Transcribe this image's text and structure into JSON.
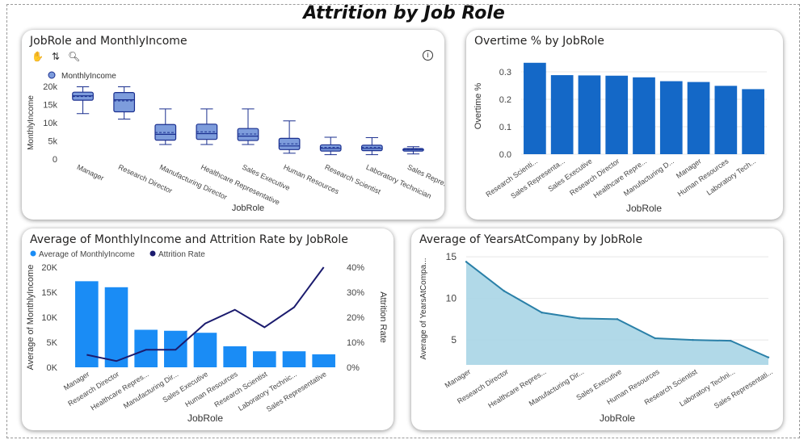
{
  "page_title": "Attrition by Job Role",
  "toolbar": {
    "icon1": "hand-icon",
    "icon2": "sort-icon",
    "icon3": "zoom-icon",
    "info": "info-icon"
  },
  "colors": {
    "box_fill": "#7d9cdc",
    "box_stroke": "#1a2f8f",
    "bar_blue": "#1468c7",
    "bar_light": "#1a8cf5",
    "line_navy": "#1b1b6e",
    "area_fill": "#a9d5e6",
    "area_line": "#2a80a8"
  },
  "chart_data": [
    {
      "type": "box",
      "title": "JobRole and MonthlyIncome",
      "legend": "MonthlyIncome",
      "xlabel": "JobRole",
      "ylabel": "MonthlyIncome",
      "ylim": [
        0,
        20000
      ],
      "yticks": [
        "0",
        "5k",
        "10k",
        "15k",
        "20k"
      ],
      "ytick_values": [
        0,
        5000,
        10000,
        15000,
        20000
      ],
      "categories": [
        "Manager",
        "Research Director",
        "Manufacturing Director",
        "Healthcare Representative",
        "Sales Executive",
        "Human Resources",
        "Research Scientist",
        "Laboratory Technician",
        "Sales Representative"
      ],
      "boxes": [
        {
          "min": 12500,
          "q1": 16200,
          "median": 17400,
          "mean": 17200,
          "q3": 18400,
          "max": 19900
        },
        {
          "min": 11000,
          "q1": 13000,
          "median": 16300,
          "mean": 16000,
          "q3": 18300,
          "max": 19900
        },
        {
          "min": 4000,
          "q1": 5200,
          "median": 6800,
          "mean": 7300,
          "q3": 9500,
          "max": 13800
        },
        {
          "min": 4000,
          "q1": 5400,
          "median": 7000,
          "mean": 7500,
          "q3": 9600,
          "max": 13800
        },
        {
          "min": 4000,
          "q1": 5100,
          "median": 6300,
          "mean": 6900,
          "q3": 8400,
          "max": 13800
        },
        {
          "min": 1600,
          "q1": 2600,
          "median": 3600,
          "mean": 4200,
          "q3": 5700,
          "max": 10500
        },
        {
          "min": 1200,
          "q1": 2200,
          "median": 2900,
          "mean": 3200,
          "q3": 3900,
          "max": 6000
        },
        {
          "min": 1200,
          "q1": 2300,
          "median": 2900,
          "mean": 3200,
          "q3": 3800,
          "max": 5900
        },
        {
          "min": 1400,
          "q1": 2200,
          "median": 2600,
          "mean": 2600,
          "q3": 2900,
          "max": 3400
        }
      ]
    },
    {
      "type": "bar",
      "title": "Overtime % by JobRole",
      "xlabel": "JobRole",
      "ylabel": "Overtime %",
      "ylim": [
        0,
        0.35
      ],
      "yticks": [
        "0.0",
        "0.1",
        "0.2",
        "0.3"
      ],
      "ytick_values": [
        0,
        0.1,
        0.2,
        0.3
      ],
      "categories": [
        "Research Scienti...",
        "Sales Representa...",
        "Sales Executive",
        "Research Director",
        "Healthcare Repre...",
        "Manufacturing D...",
        "Manager",
        "Human Resources",
        "Laboratory Tech..."
      ],
      "values": [
        0.333,
        0.288,
        0.287,
        0.286,
        0.28,
        0.266,
        0.263,
        0.249,
        0.237
      ]
    },
    {
      "type": "bar+line",
      "title": "Average of MonthlyIncome and Attrition Rate by JobRole",
      "xlabel": "JobRole",
      "ylabel": "Average of MonthlyIncome",
      "y2label": "Attrition Rate",
      "ylim": [
        0,
        20000
      ],
      "y2lim": [
        0,
        0.4
      ],
      "yticks": [
        "0K",
        "5K",
        "10K",
        "15K",
        "20K"
      ],
      "ytick_values": [
        0,
        5000,
        10000,
        15000,
        20000
      ],
      "y2ticks": [
        "0%",
        "10%",
        "20%",
        "30%",
        "40%"
      ],
      "y2tick_values": [
        0,
        0.1,
        0.2,
        0.3,
        0.4
      ],
      "categories": [
        "Manager",
        "Research Director",
        "Healthcare Repres...",
        "Manufacturing Dir...",
        "Sales Executive",
        "Human Resources",
        "Research Scientist",
        "Laboratory Technic...",
        "Sales Representative"
      ],
      "series": [
        {
          "name": "Average of MonthlyIncome",
          "type": "bar",
          "values": [
            17200,
            16000,
            7500,
            7300,
            6900,
            4200,
            3200,
            3200,
            2600
          ]
        },
        {
          "name": "Attrition Rate",
          "type": "line",
          "values": [
            0.05,
            0.025,
            0.07,
            0.07,
            0.175,
            0.23,
            0.16,
            0.24,
            0.4
          ]
        }
      ]
    },
    {
      "type": "area",
      "title": "Average of YearsAtCompany by JobRole",
      "xlabel": "JobRole",
      "ylabel": "Average of YearsAtCompa...",
      "ylim": [
        2,
        15.5
      ],
      "yticks": [
        "5",
        "10",
        "15"
      ],
      "ytick_values": [
        5,
        10,
        15
      ],
      "categories": [
        "Manager",
        "Research Director",
        "Healthcare Repres...",
        "Manufacturing Dir...",
        "Sales Executive",
        "Human Resources",
        "Research Scientist",
        "Laboratory Techni...",
        "Sales Representati..."
      ],
      "values": [
        14.4,
        10.9,
        8.3,
        7.6,
        7.5,
        5.2,
        5.0,
        4.9,
        2.9
      ]
    }
  ]
}
